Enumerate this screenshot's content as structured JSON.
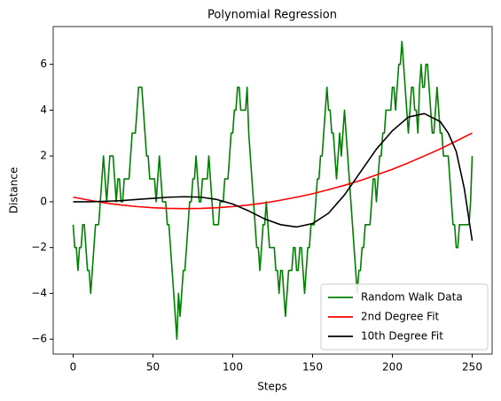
{
  "chart_data": {
    "type": "line",
    "title": "Polynomial Regression",
    "x_label": "Steps",
    "y_label": "Distance",
    "xlim": [
      -12.5,
      262.5
    ],
    "ylim": [
      -6.65,
      7.65
    ],
    "xticks": [
      0,
      50,
      100,
      150,
      200,
      250
    ],
    "yticks": [
      {
        "value": -6,
        "label": "−6"
      },
      {
        "value": -4,
        "label": "−4"
      },
      {
        "value": -2,
        "label": "−2"
      },
      0,
      2,
      4,
      6
    ],
    "grid": false,
    "legend": "lower right",
    "series": [
      {
        "name": "Random Walk Data",
        "color": "#008000",
        "x": [
          0,
          1,
          2,
          3,
          4,
          5,
          6,
          7,
          8,
          9,
          10,
          11,
          12,
          13,
          14,
          15,
          16,
          17,
          18,
          19,
          20,
          21,
          22,
          23,
          24,
          25,
          26,
          27,
          28,
          29,
          30,
          31,
          32,
          33,
          34,
          35,
          36,
          37,
          38,
          39,
          40,
          41,
          42,
          43,
          44,
          45,
          46,
          47,
          48,
          49,
          50,
          51,
          52,
          53,
          54,
          55,
          56,
          57,
          58,
          59,
          60,
          61,
          62,
          63,
          64,
          65,
          66,
          67,
          68,
          69,
          70,
          71,
          72,
          73,
          74,
          75,
          76,
          77,
          78,
          79,
          80,
          81,
          82,
          83,
          84,
          85,
          86,
          87,
          88,
          89,
          90,
          91,
          92,
          93,
          94,
          95,
          96,
          97,
          98,
          99,
          100,
          101,
          102,
          103,
          104,
          105,
          106,
          107,
          108,
          109,
          110,
          111,
          112,
          113,
          114,
          115,
          116,
          117,
          118,
          119,
          120,
          121,
          122,
          123,
          124,
          125,
          126,
          127,
          128,
          129,
          130,
          131,
          132,
          133,
          134,
          135,
          136,
          137,
          138,
          139,
          140,
          141,
          142,
          143,
          144,
          145,
          146,
          147,
          148,
          149,
          150,
          151,
          152,
          153,
          154,
          155,
          156,
          157,
          158,
          159,
          160,
          161,
          162,
          163,
          164,
          165,
          166,
          167,
          168,
          169,
          170,
          171,
          172,
          173,
          174,
          175,
          176,
          177,
          178,
          179,
          180,
          181,
          182,
          183,
          184,
          185,
          186,
          187,
          188,
          189,
          190,
          191,
          192,
          193,
          194,
          195,
          196,
          197,
          198,
          199,
          200,
          201,
          202,
          203,
          204,
          205,
          206,
          207,
          208,
          209,
          210,
          211,
          212,
          213,
          214,
          215,
          216,
          217,
          218,
          219,
          220,
          221,
          222,
          223,
          224,
          225,
          226,
          227,
          228,
          229,
          230,
          231,
          232,
          233,
          234,
          235,
          236,
          237,
          238,
          239,
          240,
          241,
          242,
          243,
          244,
          245,
          246,
          247,
          248,
          249,
          250
        ],
        "values": [
          -1,
          -2,
          -2,
          -3,
          -2,
          -2,
          -1,
          -1,
          -2,
          -3,
          -3,
          -4,
          -3,
          -2,
          -1,
          -1,
          -1,
          0,
          1,
          2,
          1,
          0,
          1,
          2,
          2,
          2,
          1,
          0,
          1,
          1,
          0,
          0,
          1,
          1,
          1,
          1,
          2,
          3,
          3,
          3,
          4,
          5,
          5,
          5,
          4,
          3,
          2,
          2,
          1,
          1,
          1,
          1,
          0,
          1,
          2,
          1,
          0,
          0,
          0,
          -1,
          -1,
          -2,
          -3,
          -4,
          -5,
          -6,
          -4,
          -5,
          -4,
          -3,
          -3,
          -2,
          -1,
          0,
          0,
          1,
          1,
          2,
          1,
          0,
          0,
          1,
          1,
          1,
          1,
          2,
          1,
          0,
          -1,
          -1,
          -1,
          -1,
          0,
          0,
          0,
          1,
          1,
          1,
          2,
          3,
          3,
          4,
          4,
          5,
          5,
          4,
          4,
          4,
          4,
          5,
          3,
          2,
          1,
          0,
          -1,
          -2,
          -2,
          -3,
          -2,
          -1,
          -1,
          0,
          -1,
          -2,
          -2,
          -2,
          -2,
          -3,
          -3,
          -4,
          -3,
          -3,
          -4,
          -5,
          -4,
          -3,
          -3,
          -3,
          -2,
          -2,
          -3,
          -3,
          -2,
          -2,
          -3,
          -4,
          -3,
          -2,
          -2,
          -1,
          -1,
          -1,
          0,
          1,
          1,
          2,
          2,
          3,
          4,
          5,
          4,
          4,
          3,
          3,
          2,
          1,
          2,
          3,
          2,
          3,
          4,
          3,
          2,
          1,
          0,
          -1,
          -2,
          -3,
          -4,
          -3,
          -3,
          -2,
          -2,
          -1,
          -1,
          -1,
          -1,
          0,
          1,
          1,
          0,
          1,
          2,
          2,
          3,
          3,
          4,
          4,
          4,
          4,
          5,
          5,
          4,
          5,
          6,
          6,
          7,
          6,
          5,
          4,
          3,
          4,
          5,
          5,
          4,
          4,
          3,
          5,
          6,
          5,
          5,
          6,
          6,
          5,
          4,
          3,
          3,
          4,
          5,
          4,
          3,
          3,
          2,
          2,
          2,
          2,
          1,
          0,
          -1,
          -1,
          -2,
          -2,
          -1,
          -1,
          -1,
          -1,
          -1,
          -1,
          -1,
          0,
          2
        ]
      },
      {
        "name": "2nd Degree Fit",
        "color": "#ff0000",
        "x": [
          0,
          10,
          20,
          30,
          40,
          50,
          60,
          70,
          80,
          90,
          100,
          110,
          120,
          130,
          140,
          150,
          160,
          170,
          180,
          190,
          200,
          210,
          220,
          230,
          240,
          250
        ],
        "values": [
          0.2,
          0.07,
          -0.05,
          -0.14,
          -0.21,
          -0.26,
          -0.29,
          -0.3,
          -0.29,
          -0.26,
          -0.21,
          -0.14,
          -0.05,
          0.07,
          0.2,
          0.35,
          0.53,
          0.72,
          0.93,
          1.17,
          1.42,
          1.7,
          2.0,
          2.31,
          2.65,
          3.0
        ]
      },
      {
        "name": "10th Degree Fit",
        "color": "#000000",
        "x": [
          0,
          10,
          20,
          30,
          40,
          50,
          60,
          70,
          80,
          90,
          100,
          110,
          120,
          130,
          140,
          150,
          160,
          170,
          180,
          190,
          200,
          210,
          220,
          230,
          235,
          240,
          245,
          250
        ],
        "values": [
          0,
          0,
          0.02,
          0.05,
          0.1,
          0.15,
          0.2,
          0.22,
          0.2,
          0.1,
          -0.1,
          -0.4,
          -0.75,
          -1.0,
          -1.1,
          -0.95,
          -0.5,
          0.3,
          1.3,
          2.3,
          3.1,
          3.7,
          3.85,
          3.5,
          3.0,
          2.2,
          0.6,
          -1.7
        ]
      }
    ]
  }
}
